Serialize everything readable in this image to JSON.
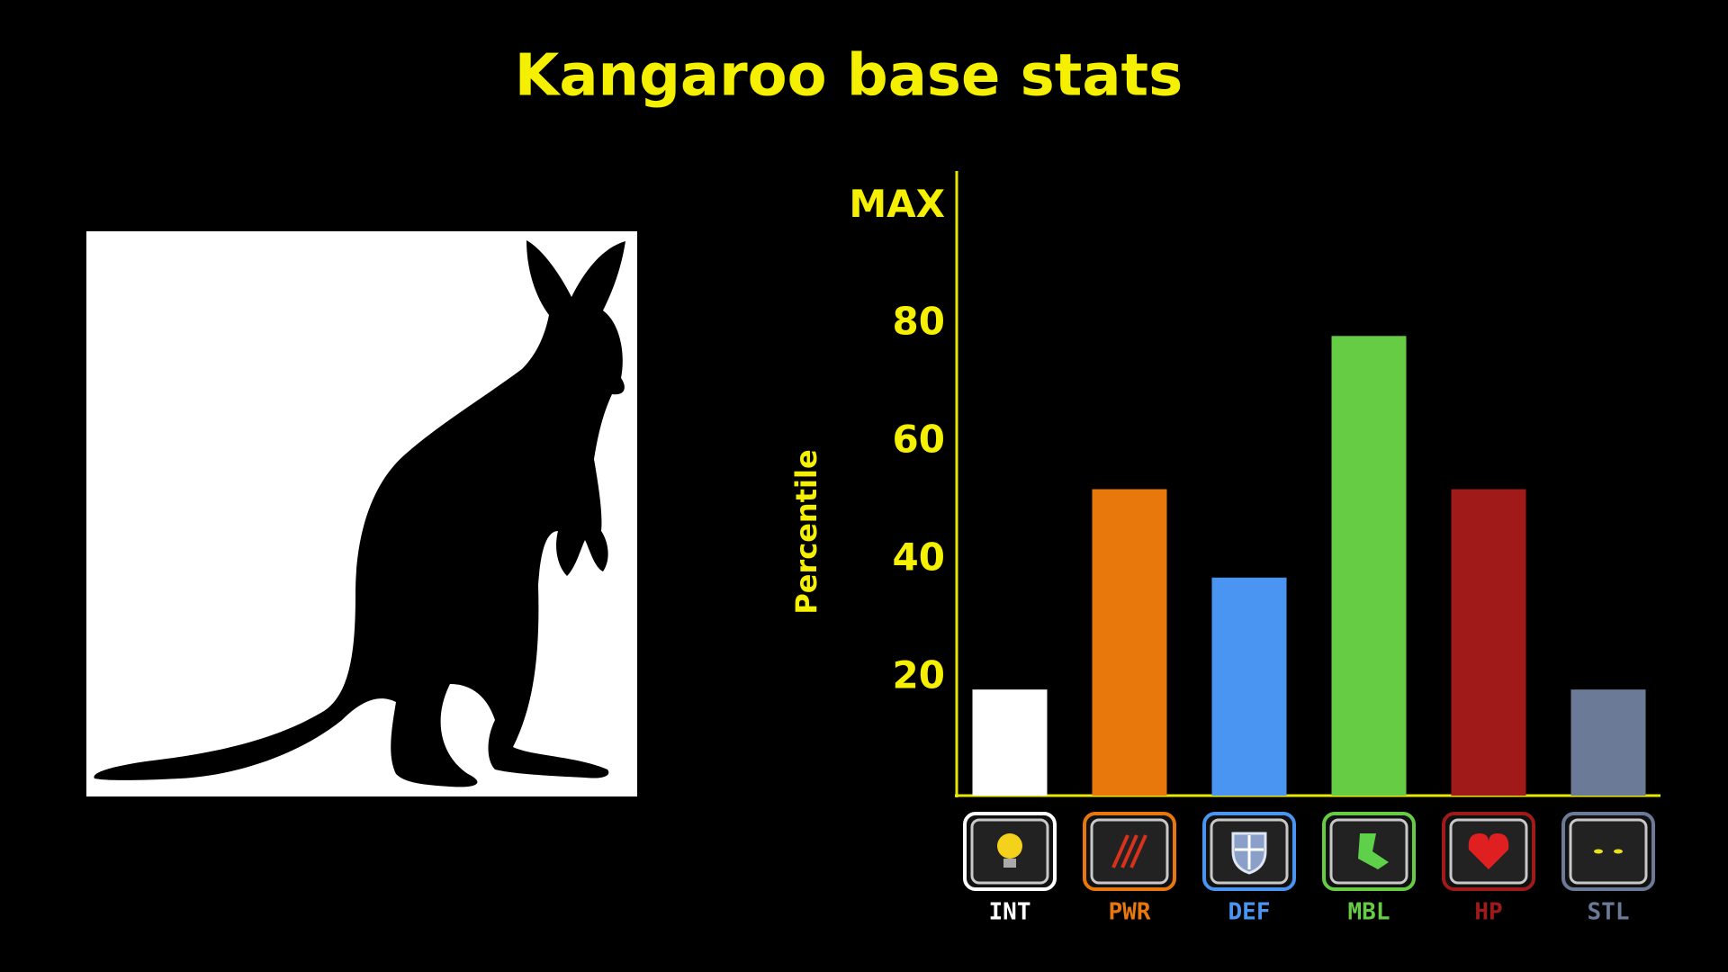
{
  "chart_data": {
    "type": "bar",
    "title": "Kangaroo base stats",
    "y_label": "Percentile",
    "categories": [
      "INT",
      "PWR",
      "DEF",
      "MBL",
      "HP",
      "STL"
    ],
    "values": [
      18,
      52,
      37,
      78,
      52,
      18
    ],
    "colors": [
      "#ffffff",
      "#e8780c",
      "#4a94f2",
      "#66cc44",
      "#a01a1a",
      "#6b7a96"
    ],
    "ylim": [
      0,
      106
    ],
    "yticks": [
      20,
      40,
      60,
      80,
      {
        "value": 100,
        "label": "MAX"
      }
    ]
  }
}
